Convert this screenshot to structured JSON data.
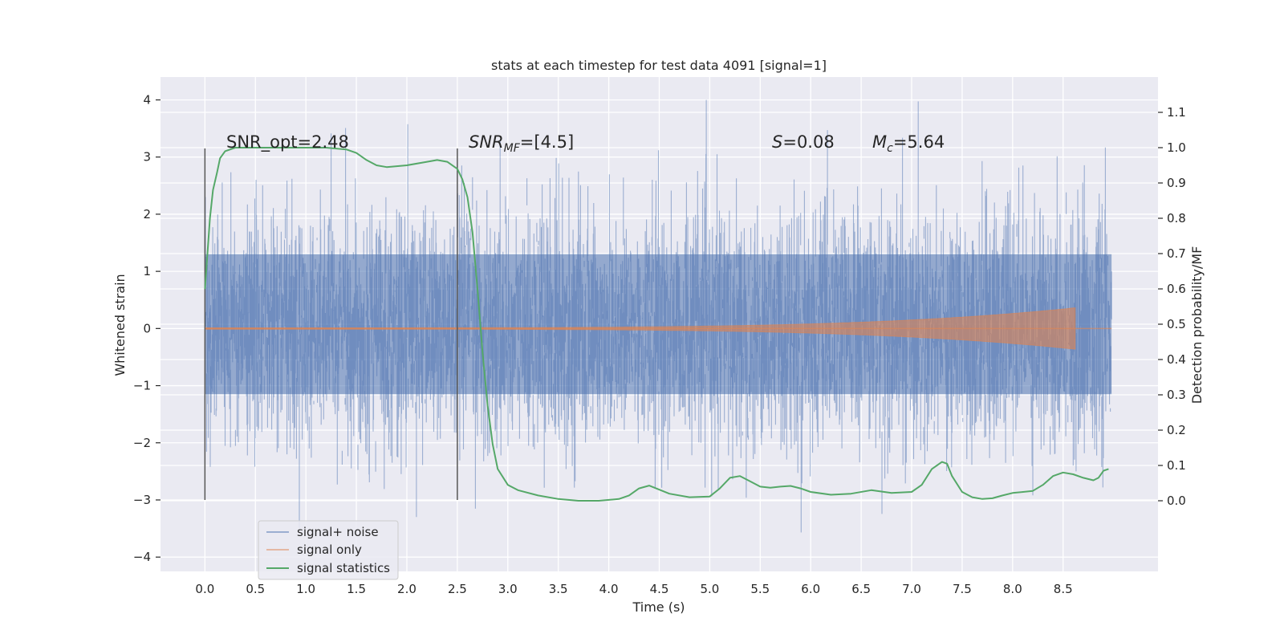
{
  "chart_data": {
    "type": "line",
    "title": "stats at each timestep for test data 4091 [signal=1]",
    "xlabel": "Time (s)",
    "ylabel": "Whitened strain",
    "ylabel_right": "Detection probability/MF",
    "xlim": [
      -0.44,
      9.44
    ],
    "ylim": [
      -4.25,
      4.4
    ],
    "ylim_right": [
      -0.2,
      1.2
    ],
    "x_ticks": [
      "0.0",
      "0.5",
      "1.0",
      "1.5",
      "2.0",
      "2.5",
      "3.0",
      "3.5",
      "4.0",
      "4.5",
      "5.0",
      "5.5",
      "6.0",
      "6.5",
      "7.0",
      "7.5",
      "8.0",
      "8.5"
    ],
    "x_tick_values": [
      0,
      0.5,
      1,
      1.5,
      2,
      2.5,
      3,
      3.5,
      4,
      4.5,
      5,
      5.5,
      6,
      6.5,
      7,
      7.5,
      8,
      8.5
    ],
    "y_ticks": [
      "4",
      "3",
      "2",
      "1",
      "0",
      "−1",
      "−2",
      "−3",
      "−4"
    ],
    "y_tick_values": [
      4,
      3,
      2,
      1,
      0,
      -1,
      -2,
      -3,
      -4
    ],
    "y_right_ticks": [
      "1.1",
      "1.0",
      "0.9",
      "0.8",
      "0.7",
      "0.6",
      "0.5",
      "0.4",
      "0.3",
      "0.2",
      "0.1",
      "0.0"
    ],
    "y_right_tick_values": [
      1.1,
      1.0,
      0.9,
      0.8,
      0.7,
      0.6,
      0.5,
      0.4,
      0.3,
      0.2,
      0.1,
      0.0
    ],
    "annotations": {
      "snr_opt": "SNR_opt=2.48",
      "snr_mf_main": "SNR",
      "snr_mf_sub": "MF",
      "snr_mf_val": "=[4.5]",
      "s_main": "S",
      "s_val": "=0.08",
      "mc_main": "M",
      "mc_sub": "c",
      "mc_val": "=5.64"
    },
    "vertical_markers": [
      0.0,
      2.5
    ],
    "series": [
      {
        "name": "signal+ noise",
        "color": "#4c72b0",
        "axis": "left",
        "x_range": [
          0,
          8.98
        ],
        "core_envelope": [
          -1.15,
          1.3
        ],
        "peak_extent": [
          -3.8,
          4.0
        ]
      },
      {
        "name": "signal only",
        "color": "#dd8452",
        "axis": "left",
        "x_range": [
          0,
          8.62
        ],
        "amplitude_end": 0.35
      },
      {
        "name": "signal statistics",
        "color": "#55a868",
        "axis": "right",
        "x": [
          0,
          0.05,
          0.08,
          0.12,
          0.15,
          0.2,
          0.3,
          0.5,
          0.8,
          1.0,
          1.2,
          1.4,
          1.5,
          1.6,
          1.7,
          1.8,
          2.0,
          2.2,
          2.3,
          2.4,
          2.5,
          2.55,
          2.6,
          2.65,
          2.7,
          2.75,
          2.8,
          2.85,
          2.9,
          3.0,
          3.1,
          3.3,
          3.5,
          3.7,
          3.9,
          4.1,
          4.2,
          4.3,
          4.4,
          4.6,
          4.8,
          5.0,
          5.1,
          5.2,
          5.3,
          5.4,
          5.5,
          5.6,
          5.7,
          5.8,
          5.9,
          6.0,
          6.2,
          6.4,
          6.6,
          6.8,
          7.0,
          7.1,
          7.2,
          7.3,
          7.35,
          7.4,
          7.5,
          7.6,
          7.7,
          7.8,
          7.9,
          8.0,
          8.2,
          8.3,
          8.4,
          8.5,
          8.6,
          8.7,
          8.8,
          8.85,
          8.9,
          8.95
        ],
        "values": [
          0.6,
          0.8,
          0.88,
          0.93,
          0.97,
          0.99,
          1.0,
          1.0,
          1.0,
          1.0,
          1.0,
          0.995,
          0.985,
          0.965,
          0.95,
          0.945,
          0.95,
          0.96,
          0.965,
          0.96,
          0.94,
          0.91,
          0.86,
          0.76,
          0.6,
          0.42,
          0.27,
          0.16,
          0.09,
          0.045,
          0.03,
          0.015,
          0.005,
          0.0,
          0.0,
          0.005,
          0.015,
          0.035,
          0.043,
          0.02,
          0.01,
          0.012,
          0.035,
          0.065,
          0.07,
          0.055,
          0.04,
          0.037,
          0.04,
          0.042,
          0.035,
          0.025,
          0.017,
          0.02,
          0.03,
          0.022,
          0.025,
          0.045,
          0.09,
          0.11,
          0.105,
          0.07,
          0.025,
          0.01,
          0.005,
          0.007,
          0.015,
          0.022,
          0.028,
          0.045,
          0.07,
          0.08,
          0.075,
          0.065,
          0.058,
          0.065,
          0.085,
          0.09
        ]
      }
    ],
    "legend_location": "lower-left"
  }
}
